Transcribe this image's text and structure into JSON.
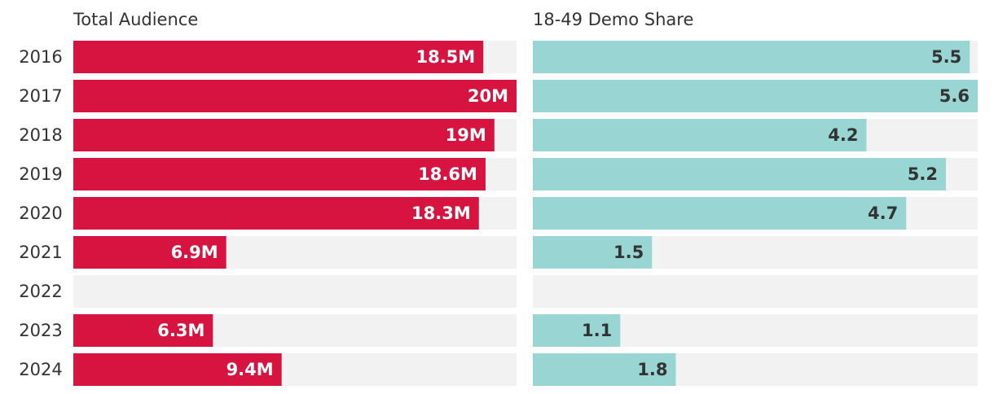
{
  "chart_data": {
    "type": "bar",
    "orientation": "horizontal",
    "categories": [
      "2016",
      "2017",
      "2018",
      "2019",
      "2020",
      "2021",
      "2022",
      "2023",
      "2024"
    ],
    "panels": [
      {
        "title": "Total Audience",
        "series_name": "Total Audience",
        "values": [
          18.5,
          20,
          19,
          18.6,
          18.3,
          6.9,
          null,
          6.3,
          9.4
        ],
        "labels": [
          "18.5M",
          "20M",
          "19M",
          "18.6M",
          "18.3M",
          "6.9M",
          "",
          "6.3M",
          "9.4M"
        ],
        "xlim": [
          0,
          20
        ],
        "color": "#d7143f",
        "track_color": "#f2f2f2",
        "label_color": "#ffffff"
      },
      {
        "title": "18-49 Demo Share",
        "series_name": "18-49 Demo Share",
        "values": [
          5.5,
          5.6,
          4.2,
          5.2,
          4.7,
          1.5,
          null,
          1.1,
          1.8
        ],
        "labels": [
          "5.5",
          "5.6",
          "4.2",
          "5.2",
          "4.7",
          "1.5",
          "",
          "1.1",
          "1.8"
        ],
        "xlim": [
          0,
          5.6
        ],
        "color": "#98d5d3",
        "track_color": "#f2f2f2",
        "label_color": "#333333"
      }
    ]
  }
}
